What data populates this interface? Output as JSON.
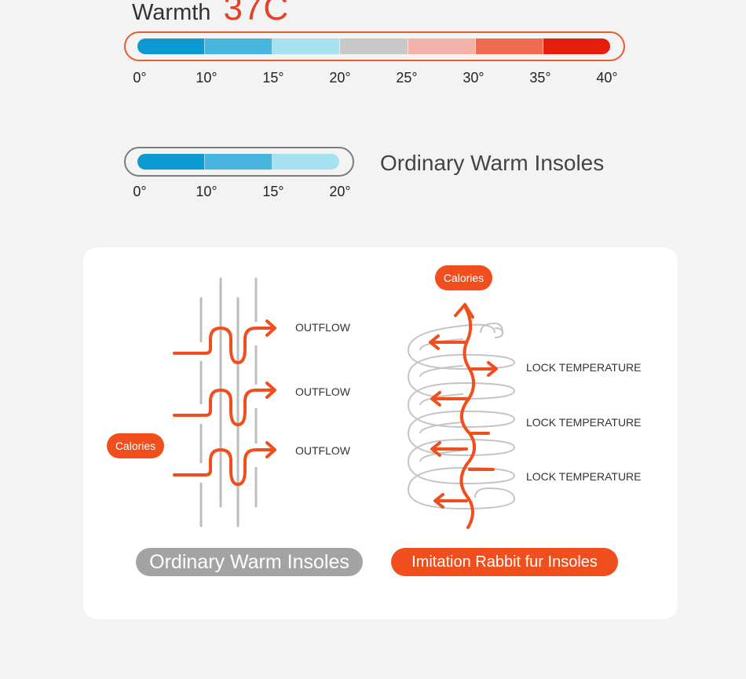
{
  "warmth": {
    "label": "Warmth",
    "value": "37C"
  },
  "scale_full": {
    "ticks": [
      "0°",
      "10°",
      "15°",
      "20°",
      "25°",
      "30°",
      "35°",
      "40°"
    ],
    "segment_colors": [
      "#0d9ad3",
      "#47b5de",
      "#a6e1f0",
      "#c8c8c8",
      "#f3b3a9",
      "#f06a50",
      "#e51f0e"
    ]
  },
  "scale_ordinary": {
    "ticks": [
      "0°",
      "10°",
      "15°",
      "20°"
    ],
    "segment_colors": [
      "#0d9ad3",
      "#47b5de",
      "#a6e1f0"
    ],
    "label": "Ordinary Warm Insoles"
  },
  "comparison": {
    "left": {
      "calories_label": "Calories",
      "flows": [
        "OUTFLOW",
        "OUTFLOW",
        "OUTFLOW"
      ],
      "caption": "Ordinary Warm Insoles"
    },
    "right": {
      "calories_label": "Calories",
      "locks": [
        "LOCK TEMPERATURE",
        "LOCK TEMPERATURE",
        "LOCK TEMPERATURE"
      ],
      "caption": "Imitation Rabbit fur Insoles"
    }
  },
  "colors": {
    "accent": "#f04e1d",
    "grey": "#a3a3a3"
  }
}
